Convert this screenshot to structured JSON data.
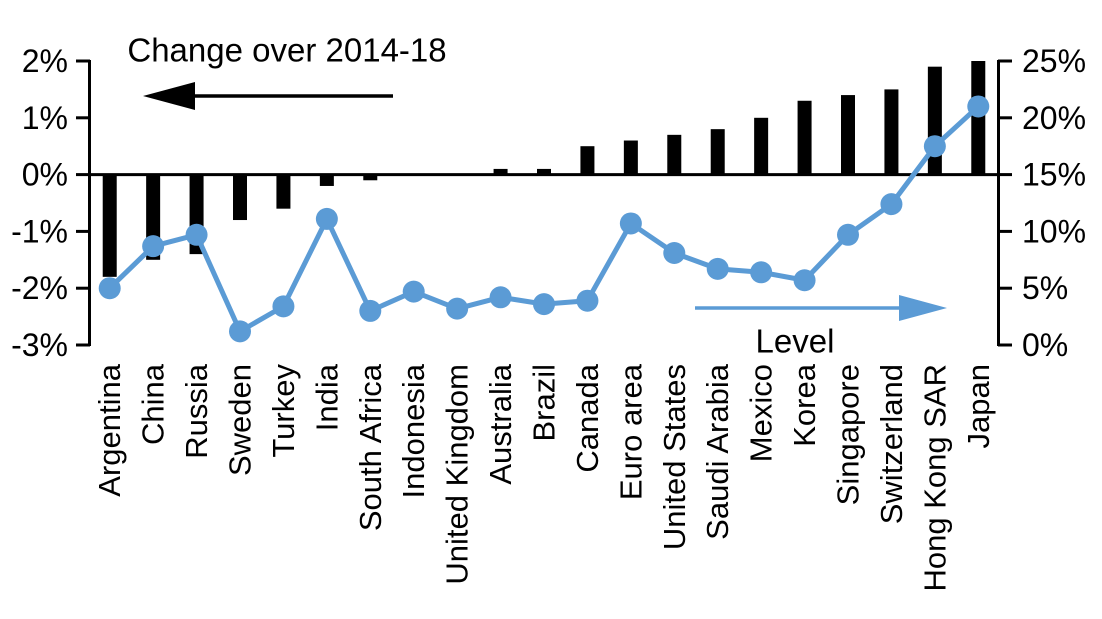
{
  "chart_data": {
    "type": "combo",
    "title": "",
    "categories": [
      "Argentina",
      "China",
      "Russia",
      "Sweden",
      "Turkey",
      "India",
      "South Africa",
      "Indonesia",
      "United Kingdom",
      "Australia",
      "Brazil",
      "Canada",
      "Euro area",
      "United States",
      "Saudi Arabia",
      "Mexico",
      "Korea",
      "Singapore",
      "Switzerland",
      "Hong Kong SAR",
      "Japan"
    ],
    "series": [
      {
        "name": "Change over 2014-18",
        "type": "bar",
        "axis": "left",
        "color": "#000000",
        "values": [
          -1.8,
          -1.5,
          -1.4,
          -0.8,
          -0.6,
          -0.2,
          -0.1,
          0.0,
          0.0,
          0.1,
          0.1,
          0.5,
          0.6,
          0.7,
          0.8,
          1.0,
          1.3,
          1.4,
          1.5,
          1.9,
          2.0
        ]
      },
      {
        "name": "Level",
        "type": "line",
        "axis": "right",
        "color": "#5B9BD5",
        "values": [
          5.0,
          8.7,
          9.7,
          1.2,
          3.4,
          11.1,
          3.0,
          4.7,
          3.2,
          4.2,
          3.6,
          3.9,
          10.7,
          8.1,
          6.7,
          6.4,
          5.7,
          9.7,
          12.4,
          17.5,
          21.0
        ]
      }
    ],
    "left_axis": {
      "min": -3,
      "max": 2,
      "tick_labels": [
        "2%",
        "1%",
        "0%",
        "-1%",
        "-2%",
        "-3%"
      ]
    },
    "right_axis": {
      "min": 0,
      "max": 25,
      "tick_labels": [
        "25%",
        "20%",
        "15%",
        "10%",
        "5%",
        "0%"
      ]
    },
    "annotations": [
      {
        "text": "Change over 2014-18",
        "arrow": "left",
        "color": "#000000"
      },
      {
        "text": "Level",
        "arrow": "right",
        "color": "#5B9BD5"
      }
    ],
    "grid": false,
    "legend_position": "none",
    "background": "#FFFFFF"
  }
}
